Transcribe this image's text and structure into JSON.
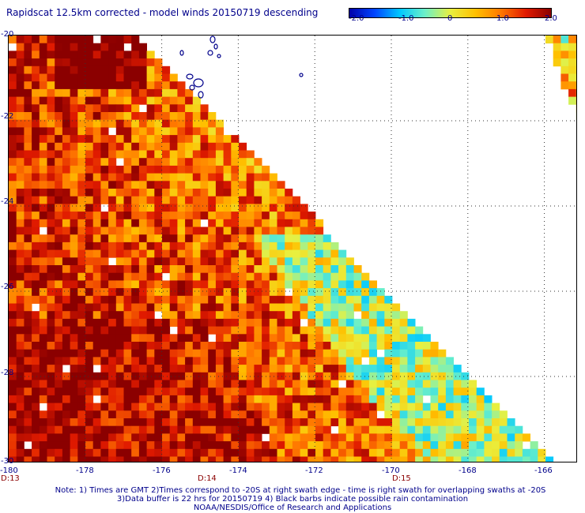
{
  "title": "Rapidscat 12.5km corrected - model winds 20150719 descending",
  "colorbar": {
    "ticks": [
      "-2.0",
      "-1.0",
      "0",
      "1.0",
      "2.0"
    ],
    "range": [
      -2.0,
      2.0
    ],
    "colors": [
      "#0000aa",
      "#0044ff",
      "#00c8ff",
      "#6cf0c8",
      "#e8f040",
      "#ffc000",
      "#ff7800",
      "#e01a00",
      "#8b0000"
    ]
  },
  "axes": {
    "lat_labels": [
      "-20",
      "-22",
      "-24",
      "-26",
      "-28",
      "-30"
    ],
    "lon_labels": [
      "-180",
      "-178",
      "-176",
      "-174",
      "-172",
      "-170",
      "-168",
      "-166"
    ],
    "lat_range": [
      -30,
      -20
    ],
    "lon_range": [
      -180,
      -165.5
    ]
  },
  "time_labels": [
    {
      "text": "D:13"
    },
    {
      "text": "D:14"
    },
    {
      "text": "D:15"
    }
  ],
  "notes": [
    "Note: 1) Times are GMT 2)Times correspond to -20S at right swath edge - time is right swath for overlapping swaths at -20S",
    "3)Data buffer is 22 hrs for 20150719 4) Black barbs indicate possible rain contamination",
    "NOAA/NESDIS/Office of Research and Applications"
  ]
}
